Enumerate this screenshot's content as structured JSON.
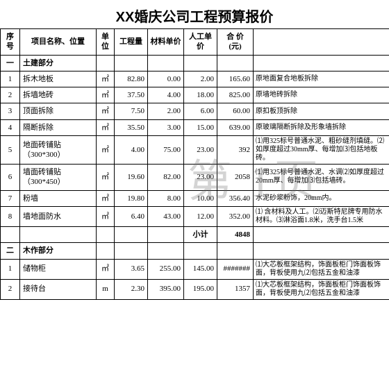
{
  "title": "XX婚庆公司工程预算报价",
  "watermark": "第 1页",
  "headers": {
    "idx": "序号",
    "name": "项目名称、位置",
    "unit": "单位",
    "qty": "工程量",
    "mat": "材料单价",
    "labor": "人工单价",
    "total": "合 价 (元)",
    "remark": ""
  },
  "sections": [
    {
      "idx": "一",
      "name": "土建部分",
      "rows": [
        {
          "idx": "1",
          "name": "拆木地板",
          "unit": "㎡",
          "qty": "82.80",
          "mat": "0.00",
          "labor": "2.00",
          "total": "165.60",
          "remark": "原地面复合地板拆除"
        },
        {
          "idx": "2",
          "name": "拆墙地砖",
          "unit": "㎡",
          "qty": "37.50",
          "mat": "4.00",
          "labor": "18.00",
          "total": "825.00",
          "remark": "原墙地砖拆除"
        },
        {
          "idx": "3",
          "name": "顶面拆除",
          "unit": "㎡",
          "qty": "7.50",
          "mat": "2.00",
          "labor": "6.00",
          "total": "60.00",
          "remark": "原扣板顶拆除"
        },
        {
          "idx": "4",
          "name": "隔断拆除",
          "unit": "㎡",
          "qty": "35.50",
          "mat": "3.00",
          "labor": "15.00",
          "total": "639.00",
          "remark": "原玻璃隔断拆除及形象墙拆除"
        },
        {
          "idx": "5",
          "name": "地面砖铺贴 （300*300）",
          "unit": "㎡",
          "qty": "4.00",
          "mat": "75.00",
          "labor": "23.00",
          "total": "392",
          "remark": "⑴用325标号普通水泥、粗砂缝剂填缝。⑵如厚度超过30mm厚、每增加⑶包括地板砖。"
        },
        {
          "idx": "6",
          "name": "墙面砖铺贴 （300*450）",
          "unit": "㎡",
          "qty": "19.60",
          "mat": "82.00",
          "labor": "23.00",
          "total": "2058",
          "remark": "⑴用325标号普通水泥、水调⑵如厚度超过20mm厚、每增加⑶包括墙砖。"
        },
        {
          "idx": "7",
          "name": "粉墙",
          "unit": "㎡",
          "qty": "19.80",
          "mat": "8.00",
          "labor": "10.00",
          "total": "356.40",
          "remark": "水泥砂浆粉饰，20mm内。"
        },
        {
          "idx": "8",
          "name": "墙地面防水",
          "unit": "㎡",
          "qty": "6.40",
          "mat": "43.00",
          "labor": "12.00",
          "total": "352.00",
          "remark": "⑴ 含材料及人工。⑵迈斯特尼牌专用防水材料。⑶淋浴面1.8米，洗手台1.5米"
        }
      ],
      "subtotal_label": "小计",
      "subtotal": "4848"
    },
    {
      "idx": "二",
      "name": "木作部分",
      "rows": [
        {
          "idx": "1",
          "name": "储物柜",
          "unit": "㎡",
          "qty": "3.65",
          "mat": "255.00",
          "labor": "145.00",
          "total": "#######",
          "remark": "⑴大芯板框架结构，饰面板柜门饰面板饰面，背板使用九⑵包括五金和油漆"
        },
        {
          "idx": "2",
          "name": "接待台",
          "unit": "m",
          "qty": "2.30",
          "mat": "395.00",
          "labor": "195.00",
          "total": "1357",
          "remark": "⑴大芯板框架结构，饰面板柜门饰面板饰面，背板使用九⑵包括五金和油漆"
        }
      ]
    }
  ]
}
